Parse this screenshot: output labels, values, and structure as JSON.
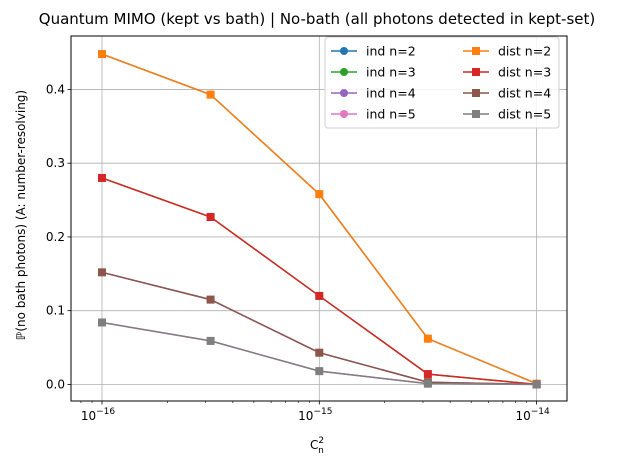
{
  "chart_data": {
    "type": "line",
    "title": "Quantum MIMO (kept vs bath) | No-bath (all photons detected in kept-set)",
    "xlabel": "C²ₙ",
    "xlabel_main": "C",
    "xlabel_sup": "2",
    "xlabel_sub": "n",
    "ylabel": "ℙ(no bath photons) (A: number-resolving)",
    "xscale": "log",
    "xlim": [
      7.2e-17,
      1.38e-14
    ],
    "ylim": [
      -0.0225,
      0.4725
    ],
    "grid": true,
    "legend_position": "top-right",
    "legend_columns": 2,
    "x_ticks": [
      {
        "value": 1e-16,
        "base": "10",
        "exp": "−16"
      },
      {
        "value": 1e-15,
        "base": "10",
        "exp": "−15"
      },
      {
        "value": 1e-14,
        "base": "10",
        "exp": "−14"
      }
    ],
    "y_ticks": [
      {
        "value": 0.0,
        "label": "0.0"
      },
      {
        "value": 0.1,
        "label": "0.1"
      },
      {
        "value": 0.2,
        "label": "0.2"
      },
      {
        "value": 0.3,
        "label": "0.3"
      },
      {
        "value": 0.4,
        "label": "0.4"
      }
    ],
    "x": [
      1e-16,
      3.16e-16,
      1e-15,
      3.16e-15,
      1e-14
    ],
    "series": [
      {
        "name": "ind n=2",
        "marker": "circle",
        "color": "#1f77b4",
        "values": [
          0.448,
          0.393,
          0.258,
          0.062,
          0.001
        ]
      },
      {
        "name": "dist n=2",
        "marker": "square",
        "color": "#ff7f0e",
        "values": [
          0.448,
          0.393,
          0.258,
          0.062,
          0.001
        ]
      },
      {
        "name": "ind n=3",
        "marker": "circle",
        "color": "#2ca02c",
        "values": [
          0.28,
          0.227,
          0.12,
          0.014,
          0.0
        ]
      },
      {
        "name": "dist n=3",
        "marker": "square",
        "color": "#d62728",
        "values": [
          0.28,
          0.227,
          0.12,
          0.014,
          0.0
        ]
      },
      {
        "name": "ind n=4",
        "marker": "circle",
        "color": "#9467bd",
        "values": [
          0.152,
          0.115,
          0.043,
          0.003,
          0.0
        ]
      },
      {
        "name": "dist n=4",
        "marker": "square",
        "color": "#8c564b",
        "values": [
          0.152,
          0.115,
          0.043,
          0.003,
          0.0
        ]
      },
      {
        "name": "ind n=5",
        "marker": "circle",
        "color": "#e377c2",
        "values": [
          0.084,
          0.059,
          0.018,
          0.001,
          0.0
        ]
      },
      {
        "name": "dist n=5",
        "marker": "square",
        "color": "#7f7f7f",
        "values": [
          0.084,
          0.059,
          0.018,
          0.001,
          0.0
        ]
      }
    ]
  }
}
